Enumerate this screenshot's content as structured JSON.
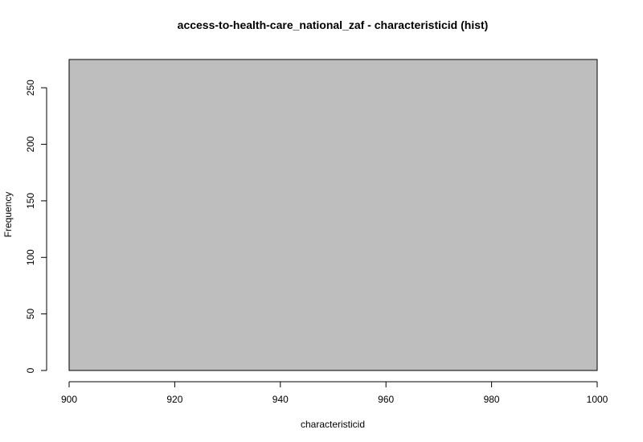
{
  "chart_data": {
    "type": "bar",
    "title": "access-to-health-care_national_zaf - characteristicid (hist)",
    "xlabel": "characteristicid",
    "ylabel": "Frequency",
    "bins": [
      {
        "x0": 900,
        "x1": 1000,
        "count": 275
      }
    ],
    "xlim": [
      900,
      1000
    ],
    "ylim": [
      0,
      275
    ],
    "x_ticks": [
      900,
      920,
      940,
      960,
      980,
      1000
    ],
    "y_ticks": [
      0,
      50,
      100,
      150,
      200,
      250
    ],
    "grid": false,
    "legend": "none",
    "bar_color": "#bebebe",
    "border_color": "#000000"
  }
}
